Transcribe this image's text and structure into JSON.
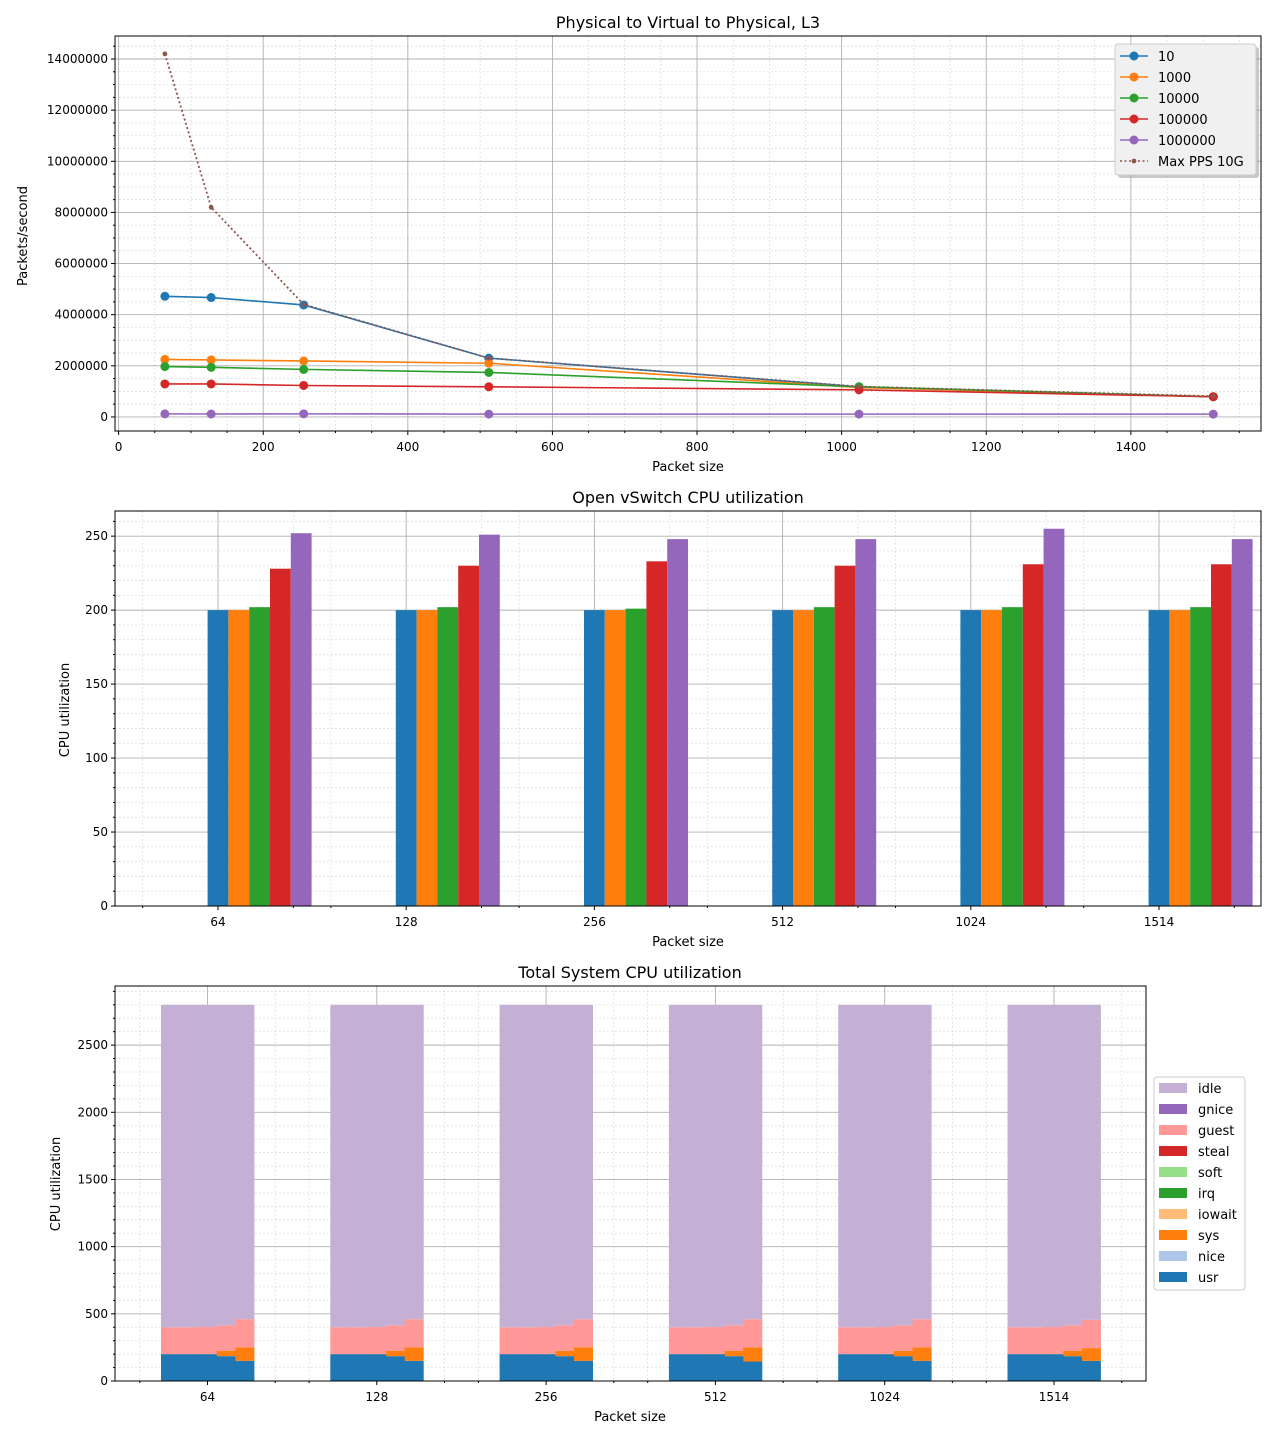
{
  "chart_data": [
    {
      "type": "line",
      "title": "Physical to Virtual to Physical, L3",
      "xlabel": "Packet size",
      "ylabel": "Packets/second",
      "xlim": [
        -5,
        1580
      ],
      "ylim": [
        -550000,
        14900000
      ],
      "xticks": [
        0,
        200,
        400,
        600,
        800,
        1000,
        1200,
        1400
      ],
      "yticks": [
        0,
        2000000,
        4000000,
        6000000,
        8000000,
        10000000,
        12000000,
        14000000
      ],
      "x": [
        64,
        128,
        256,
        512,
        1024,
        1514
      ],
      "grid": true,
      "legend_position": "top-right",
      "series": [
        {
          "name": "10",
          "color": "#1f77b4",
          "values": [
            4720000,
            4670000,
            4380000,
            2300000,
            1180000,
            790000
          ]
        },
        {
          "name": "1000",
          "color": "#ff7f0e",
          "values": [
            2250000,
            2230000,
            2190000,
            2100000,
            1150000,
            790000
          ]
        },
        {
          "name": "10000",
          "color": "#2ca02c",
          "values": [
            1970000,
            1940000,
            1860000,
            1740000,
            1180000,
            790000
          ]
        },
        {
          "name": "100000",
          "color": "#d62728",
          "values": [
            1290000,
            1290000,
            1230000,
            1180000,
            1060000,
            790000
          ]
        },
        {
          "name": "1000000",
          "color": "#9467bd",
          "values": [
            120000,
            115000,
            120000,
            110000,
            110000,
            110000
          ]
        },
        {
          "name": "Max PPS 10G",
          "color": "#8c564b",
          "style": "dotted",
          "values": [
            14200000,
            8200000,
            4400000,
            2300000,
            1190000,
            810000
          ]
        }
      ]
    },
    {
      "type": "bar",
      "title": "Open vSwitch CPU utilization",
      "xlabel": "Packet size",
      "ylabel": "CPU utilization",
      "ylim": [
        0,
        267
      ],
      "yticks": [
        0,
        50,
        100,
        150,
        200,
        250
      ],
      "categories": [
        "64",
        "128",
        "256",
        "512",
        "1024",
        "1514"
      ],
      "grid": true,
      "series": [
        {
          "name": "10",
          "color": "#1f77b4",
          "values": [
            200,
            200,
            200,
            200,
            200,
            200
          ]
        },
        {
          "name": "1000",
          "color": "#ff7f0e",
          "values": [
            200,
            200,
            200,
            200,
            200,
            200
          ]
        },
        {
          "name": "10000",
          "color": "#2ca02c",
          "values": [
            202,
            202,
            201,
            202,
            202,
            202
          ]
        },
        {
          "name": "100000",
          "color": "#d62728",
          "values": [
            228,
            230,
            233,
            230,
            231,
            231
          ]
        },
        {
          "name": "1000000",
          "color": "#9467bd",
          "values": [
            252,
            251,
            248,
            248,
            255,
            248
          ]
        }
      ]
    },
    {
      "type": "bar",
      "stacked": true,
      "title": "Total System CPU utilization",
      "xlabel": "Packet size",
      "ylabel": "CPU utilization",
      "ylim": [
        0,
        2940
      ],
      "yticks": [
        0,
        500,
        1000,
        1500,
        2000,
        2500
      ],
      "categories": [
        "64",
        "128",
        "256",
        "512",
        "1024",
        "1514"
      ],
      "grid": true,
      "legend_position": "center-right",
      "sub_bars_per_category": 5,
      "stack_order": [
        "usr",
        "nice",
        "sys",
        "iowait",
        "irq",
        "soft",
        "steal",
        "guest",
        "gnice",
        "idle"
      ],
      "legend": [
        {
          "name": "idle",
          "color": "#c5b0d5"
        },
        {
          "name": "gnice",
          "color": "#9467bd"
        },
        {
          "name": "guest",
          "color": "#ff9896"
        },
        {
          "name": "steal",
          "color": "#d62728"
        },
        {
          "name": "soft",
          "color": "#98df8a"
        },
        {
          "name": "irq",
          "color": "#2ca02c"
        },
        {
          "name": "iowait",
          "color": "#ffbb78"
        },
        {
          "name": "sys",
          "color": "#ff7f0e"
        },
        {
          "name": "nice",
          "color": "#aec7e8"
        },
        {
          "name": "usr",
          "color": "#1f77b4"
        }
      ],
      "values": {
        "usr": [
          [
            200,
            200,
            200,
            185,
            150
          ],
          [
            200,
            200,
            200,
            185,
            150
          ],
          [
            200,
            200,
            200,
            185,
            150
          ],
          [
            200,
            200,
            200,
            185,
            145
          ],
          [
            200,
            200,
            200,
            185,
            150
          ],
          [
            200,
            200,
            200,
            185,
            150
          ]
        ],
        "sys": [
          [
            0,
            0,
            2,
            40,
            100
          ],
          [
            0,
            0,
            2,
            40,
            100
          ],
          [
            0,
            0,
            2,
            40,
            100
          ],
          [
            0,
            0,
            2,
            40,
            105
          ],
          [
            0,
            0,
            2,
            40,
            100
          ],
          [
            0,
            0,
            2,
            40,
            95
          ]
        ],
        "guest": [
          [
            200,
            200,
            200,
            190,
            210
          ],
          [
            200,
            200,
            200,
            190,
            210
          ],
          [
            200,
            200,
            200,
            190,
            210
          ],
          [
            200,
            200,
            200,
            190,
            210
          ],
          [
            200,
            200,
            200,
            190,
            210
          ],
          [
            200,
            200,
            200,
            190,
            210
          ]
        ],
        "idle": [
          [
            2400,
            2400,
            2398,
            2385,
            2340
          ],
          [
            2400,
            2400,
            2398,
            2385,
            2340
          ],
          [
            2400,
            2400,
            2398,
            2385,
            2340
          ],
          [
            2400,
            2400,
            2398,
            2385,
            2340
          ],
          [
            2400,
            2400,
            2398,
            2385,
            2340
          ],
          [
            2400,
            2400,
            2398,
            2385,
            2345
          ]
        ]
      }
    }
  ]
}
